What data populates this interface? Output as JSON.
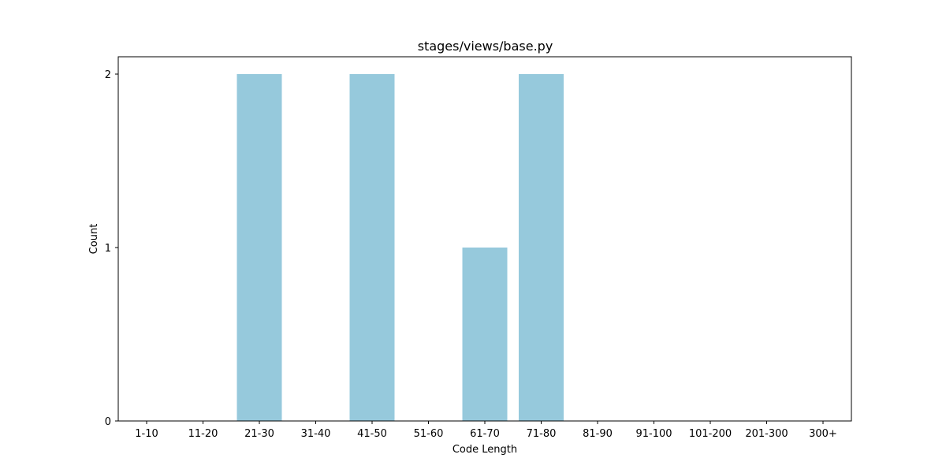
{
  "chart_data": {
    "type": "bar",
    "title": "stages/views/base.py",
    "xlabel": "Code Length",
    "ylabel": "Count",
    "categories": [
      "1-10",
      "11-20",
      "21-30",
      "31-40",
      "41-50",
      "51-60",
      "61-70",
      "71-80",
      "81-90",
      "91-100",
      "101-200",
      "201-300",
      "300+"
    ],
    "values": [
      0,
      0,
      2,
      0,
      2,
      0,
      1,
      2,
      0,
      0,
      0,
      0,
      0
    ],
    "ylim": [
      0,
      2.1
    ],
    "yticks": [
      0,
      1,
      2
    ],
    "grid": false,
    "bar_color": "#96c9dc"
  }
}
